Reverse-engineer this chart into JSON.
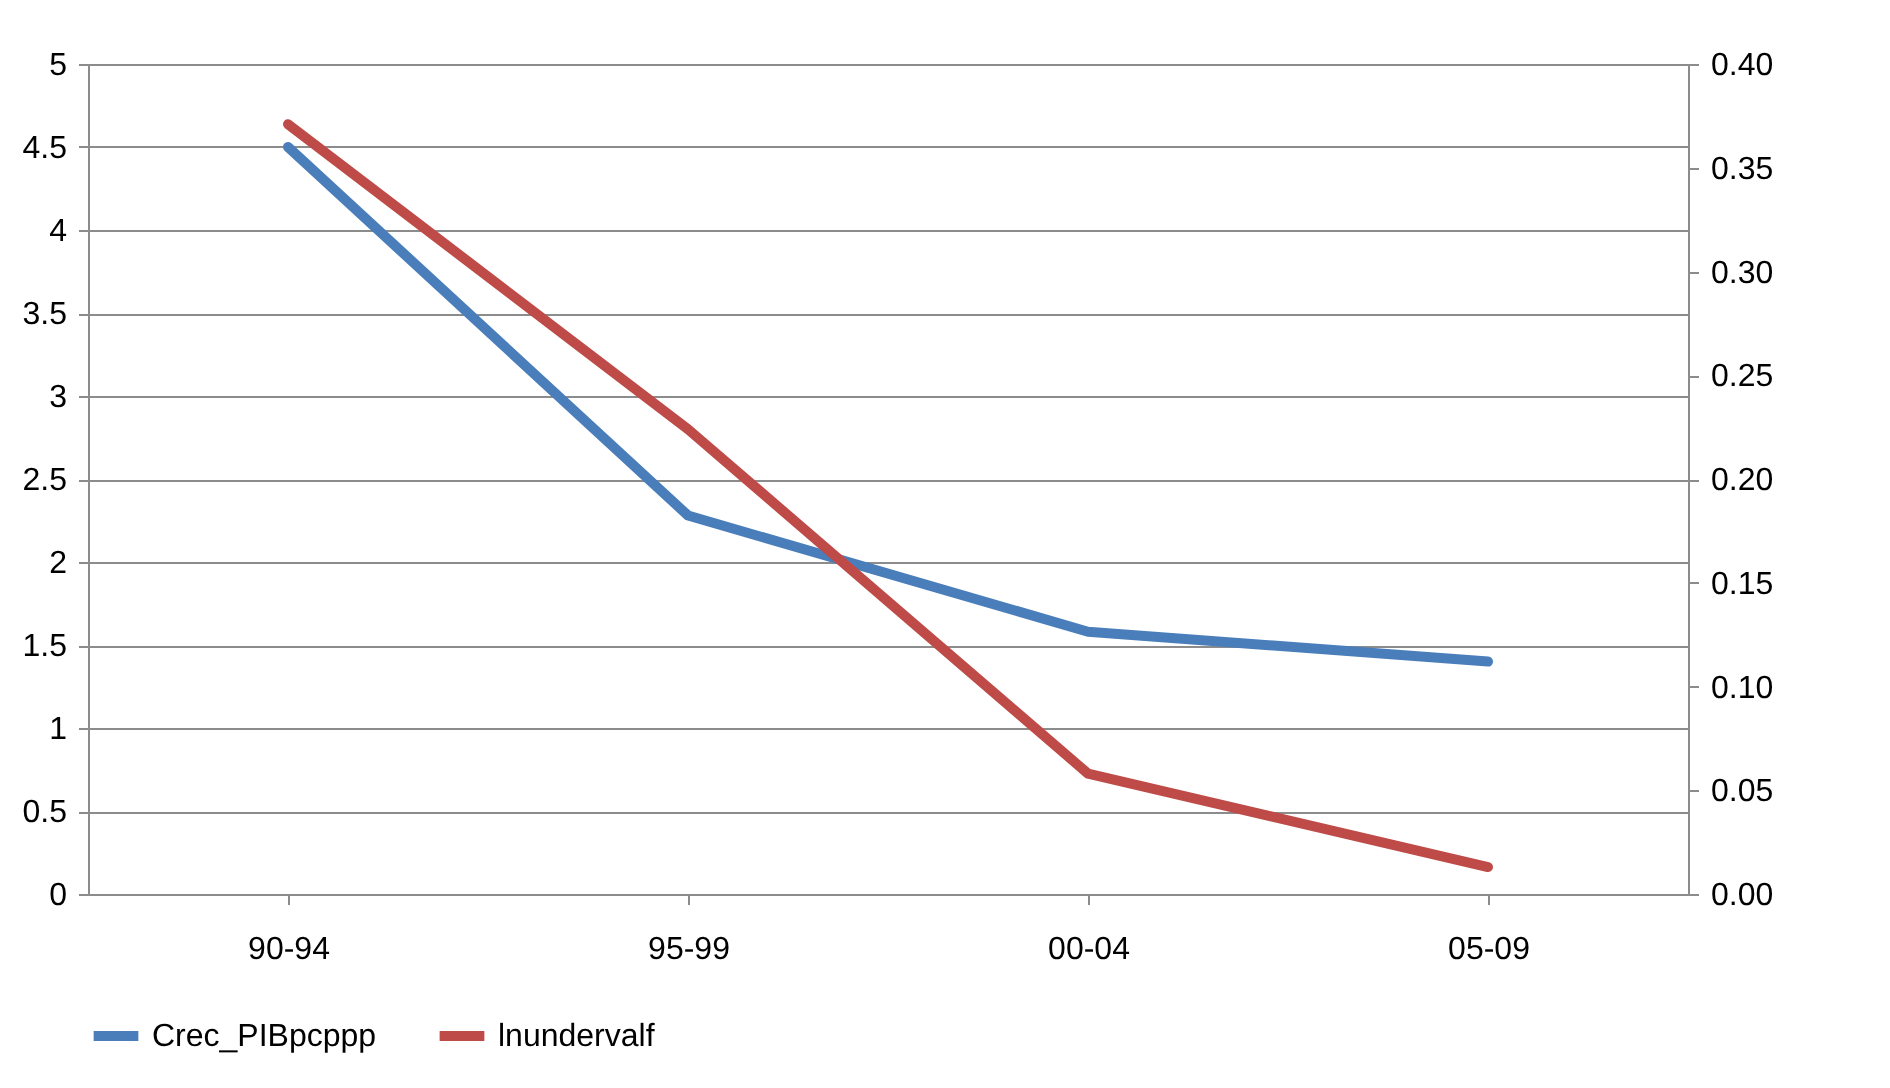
{
  "chart_data": {
    "type": "line",
    "categories": [
      "90-94",
      "95-99",
      "00-04",
      "05-09"
    ],
    "series": [
      {
        "name": "Crec_PIBpcppp",
        "color": "#4a7ebb",
        "values": [
          4.5,
          2.28,
          1.58,
          1.4
        ]
      },
      {
        "name": "lnundervalf",
        "color": "#be4b48",
        "axis": "y2",
        "values": [
          0.371,
          0.224,
          0.058,
          0.013
        ]
      }
    ],
    "ylim": [
      0,
      5
    ],
    "yticks": [
      0,
      0.5,
      1,
      1.5,
      2,
      2.5,
      3,
      3.5,
      4,
      4.5,
      5
    ],
    "y2lim": [
      0,
      0.4
    ],
    "y2ticks": [
      {
        "value": 0,
        "label": "0.00"
      },
      {
        "value": 0.05,
        "label": "0.05"
      },
      {
        "value": 0.1,
        "label": "0.10"
      },
      {
        "value": 0.15,
        "label": "0.15"
      },
      {
        "value": 0.2,
        "label": "0.20"
      },
      {
        "value": 0.25,
        "label": "0.25"
      },
      {
        "value": 0.3,
        "label": "0.30"
      },
      {
        "value": 0.35,
        "label": "0.35"
      },
      {
        "value": 0.4,
        "label": "0.40"
      }
    ],
    "grid": "y",
    "legend": "bottom",
    "marker": "none",
    "line_style": "solid"
  }
}
